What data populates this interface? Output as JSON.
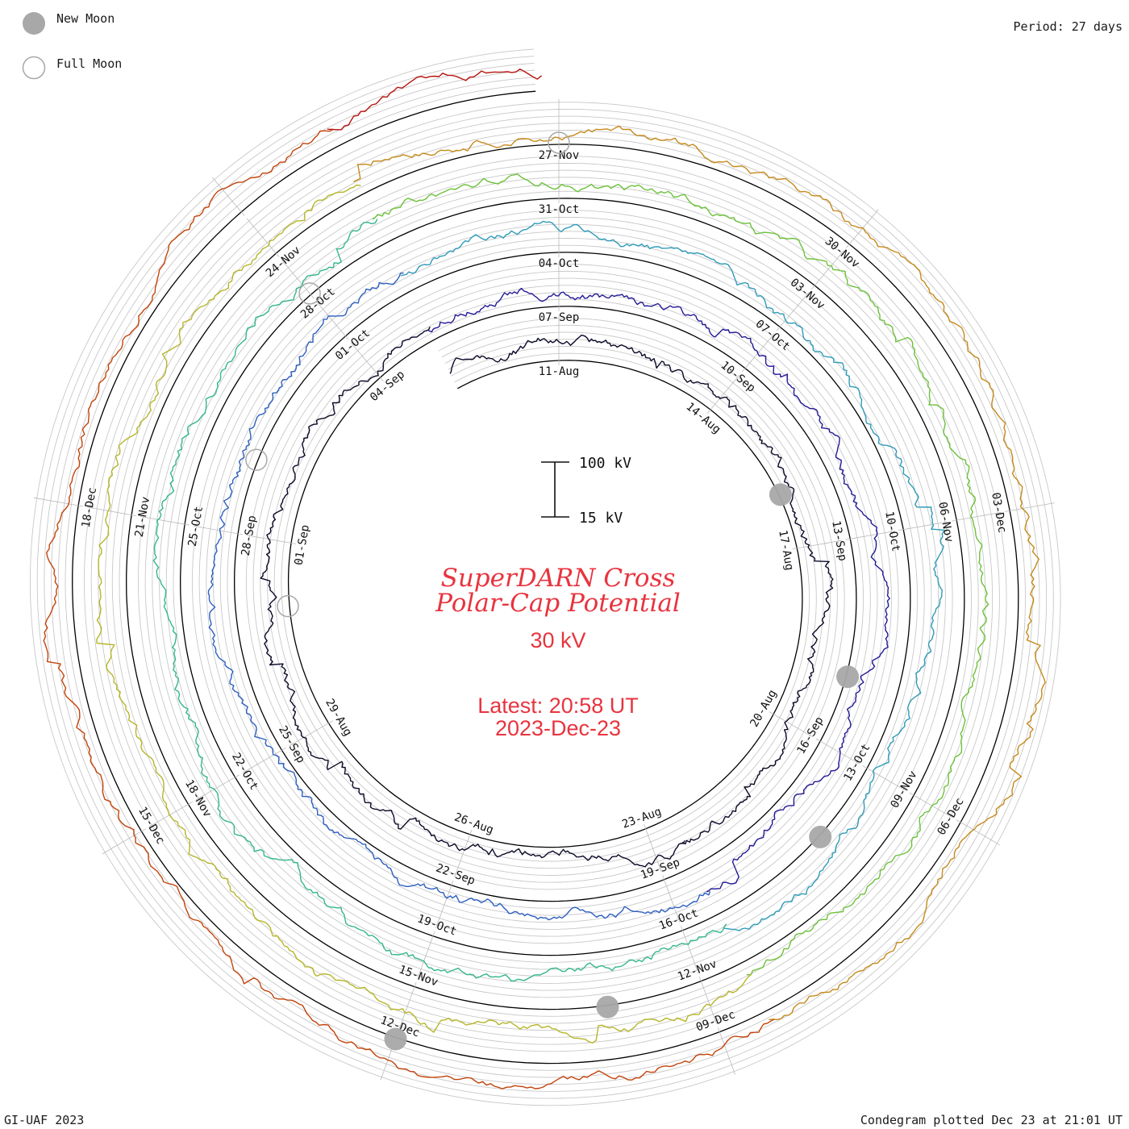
{
  "legend": {
    "new_moon_label": "New Moon",
    "full_moon_label": "Full Moon",
    "period_label": "Period: 27 days"
  },
  "footer": {
    "credit": "GI-UAF 2023",
    "plotted": "Condegram plotted Dec 23 at 21:01 UT"
  },
  "chart_data": {
    "type": "line",
    "subtype": "condegram-spiral",
    "title_line1": "SuperDARN Cross",
    "title_line2": "Polar-Cap Potential",
    "current_value": "30 kV",
    "latest_time": "Latest: 20:58 UT",
    "latest_date": "2023-Dec-23",
    "scale_top_label": "100 kV",
    "scale_bottom_label": "15 kV",
    "scale_range_kV": [
      15,
      100
    ],
    "period_days": 27,
    "start_date": "2023-08-09",
    "end_date": "2023-12-23",
    "ring_date_labels": [
      [
        "11-Aug",
        "14-Aug",
        "17-Aug",
        "20-Aug",
        "23-Aug",
        "26-Aug",
        "29-Aug",
        "01-Sep",
        "04-Sep"
      ],
      [
        "07-Sep",
        "10-Sep",
        "13-Sep",
        "16-Sep",
        "19-Sep",
        "22-Sep",
        "25-Sep",
        "28-Sep",
        "01-Oct"
      ],
      [
        "04-Oct",
        "07-Oct",
        "10-Oct",
        "13-Oct",
        "16-Oct",
        "19-Oct",
        "22-Oct",
        "25-Oct",
        "28-Oct"
      ],
      [
        "31-Oct",
        "03-Nov",
        "06-Nov",
        "09-Nov",
        "12-Nov",
        "15-Nov",
        "18-Nov",
        "21-Nov",
        "24-Nov"
      ],
      [
        "27-Nov",
        "30-Nov",
        "03-Dec",
        "06-Dec",
        "09-Dec",
        "12-Dec",
        "15-Dec",
        "18-Dec"
      ]
    ],
    "new_moons": [
      "2023-08-16",
      "2023-09-15",
      "2023-10-14",
      "2023-11-13",
      "2023-12-12"
    ],
    "full_moons": [
      "2023-08-31",
      "2023-09-29",
      "2023-10-28",
      "2023-11-27"
    ],
    "typical_range_kV": [
      15,
      100
    ],
    "series_colors": [
      "#0a0a28",
      "#231a96",
      "#2e5fc0",
      "#2f9bb8",
      "#33b68d",
      "#6cc13a",
      "#b6b52a",
      "#c58a1c",
      "#c2440c",
      "#b8140e"
    ]
  }
}
